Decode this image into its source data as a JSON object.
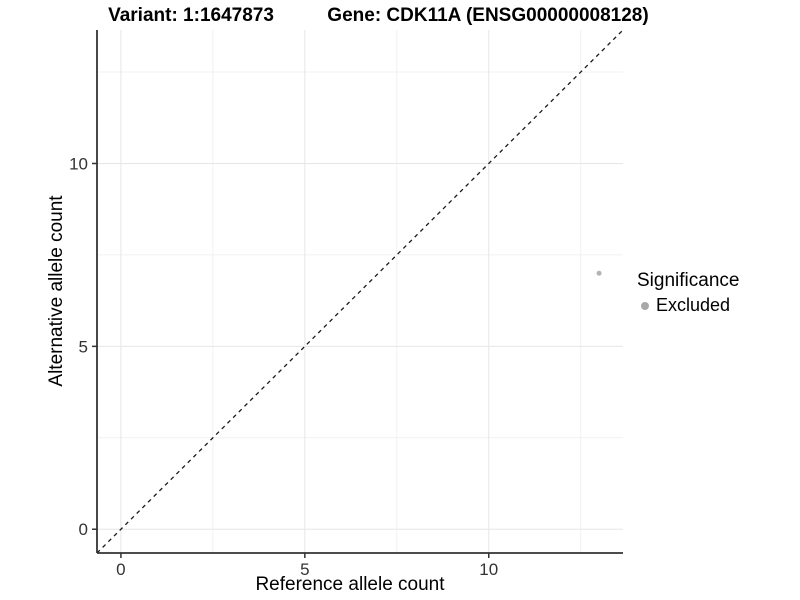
{
  "chart_data": {
    "type": "scatter",
    "title_left": "Variant: 1:1647873",
    "title_right": "Gene: CDK11A (ENSG00000008128)",
    "xlabel": "Reference allele count",
    "ylabel": "Alternative allele count",
    "xlim": [
      -0.65,
      13.65
    ],
    "ylim": [
      -0.65,
      13.65
    ],
    "x_ticks": [
      0,
      5,
      10
    ],
    "y_ticks": [
      0,
      5,
      10
    ],
    "x_minor_ticks": [
      2.5,
      7.5,
      12.5
    ],
    "y_minor_ticks": [
      2.5,
      7.5,
      12.5
    ],
    "grid": "major and minor gridlines, white background",
    "identity_line": {
      "style": "dashed",
      "equation": "y = x",
      "color": "#1a1a1a"
    },
    "series": [
      {
        "name": "Excluded",
        "color": "#b3b3b3",
        "points": [
          {
            "x": 13,
            "y": 7
          }
        ]
      }
    ],
    "legend": {
      "title": "Significance",
      "position": "right",
      "items": [
        {
          "label": "Excluded",
          "color": "#a8a8a8"
        }
      ]
    }
  },
  "colors": {
    "background": "#ffffff",
    "grid_major": "#e6e6e6",
    "grid_minor": "#f1f1f1",
    "axis_line": "#333333",
    "tick_label": "#333333",
    "point": "#b3b3b3",
    "identity_line": "#1a1a1a"
  }
}
